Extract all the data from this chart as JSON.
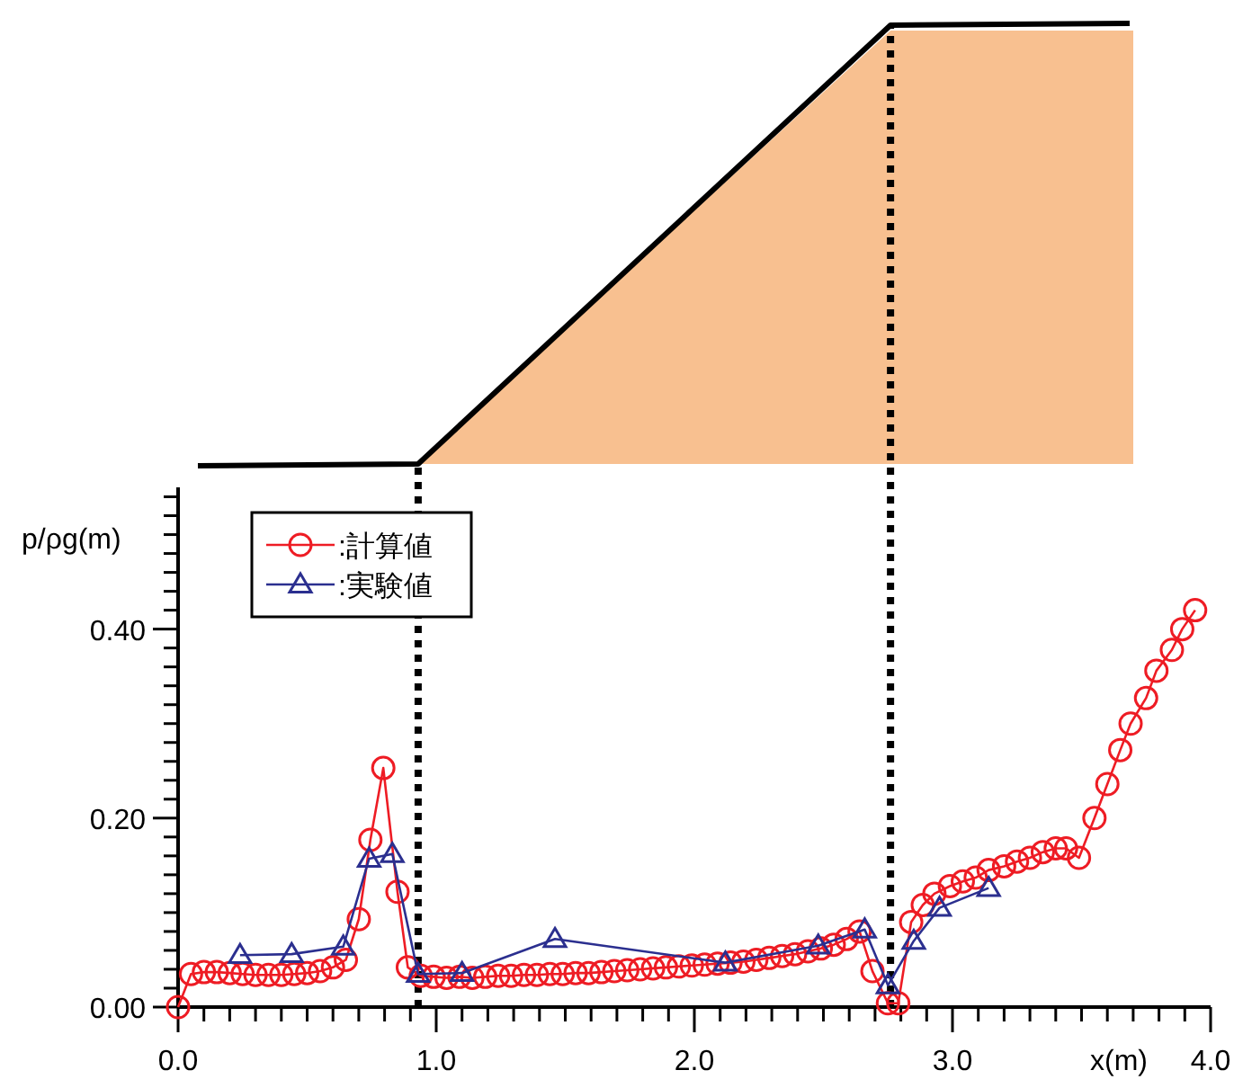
{
  "chart_data": {
    "type": "line",
    "xlabel": "x(m)",
    "ylabel": "p/ρg(m)",
    "xlim": [
      0,
      4.0
    ],
    "ylim": [
      0,
      0.55
    ],
    "xticks": [
      {
        "value": 0,
        "label": "0.0"
      },
      {
        "value": 0.1,
        "label": null
      },
      {
        "value": 0.2,
        "label": null
      },
      {
        "value": 0.3,
        "label": null
      },
      {
        "value": 0.4,
        "label": null
      },
      {
        "value": 0.5,
        "label": null
      },
      {
        "value": 0.6,
        "label": null
      },
      {
        "value": 0.7,
        "label": null
      },
      {
        "value": 0.8,
        "label": null
      },
      {
        "value": 0.9,
        "label": null
      },
      {
        "value": 1,
        "label": "1.0"
      },
      {
        "value": 1.1,
        "label": null
      },
      {
        "value": 1.2,
        "label": null
      },
      {
        "value": 1.3,
        "label": null
      },
      {
        "value": 1.4,
        "label": null
      },
      {
        "value": 1.5,
        "label": null
      },
      {
        "value": 1.6,
        "label": null
      },
      {
        "value": 1.7,
        "label": null
      },
      {
        "value": 1.8,
        "label": null
      },
      {
        "value": 1.9,
        "label": null
      },
      {
        "value": 2,
        "label": "2.0"
      },
      {
        "value": 2.1,
        "label": null
      },
      {
        "value": 2.2,
        "label": null
      },
      {
        "value": 2.3,
        "label": null
      },
      {
        "value": 2.4,
        "label": null
      },
      {
        "value": 2.5,
        "label": null
      },
      {
        "value": 2.6,
        "label": null
      },
      {
        "value": 2.7,
        "label": null
      },
      {
        "value": 2.8,
        "label": null
      },
      {
        "value": 2.9,
        "label": null
      },
      {
        "value": 3,
        "label": "3.0"
      },
      {
        "value": 3.1,
        "label": null
      },
      {
        "value": 3.2,
        "label": null
      },
      {
        "value": 3.3,
        "label": null
      },
      {
        "value": 3.4,
        "label": null
      },
      {
        "value": 3.5,
        "label": null
      },
      {
        "value": 3.6,
        "label": null
      },
      {
        "value": 3.7,
        "label": null
      },
      {
        "value": 3.8,
        "label": null
      },
      {
        "value": 3.9,
        "label": null
      },
      {
        "value": 4,
        "label": "4.0"
      }
    ],
    "yticks": [
      {
        "value": 0,
        "label": "0.00"
      },
      {
        "value": 0.02,
        "label": null
      },
      {
        "value": 0.04,
        "label": null
      },
      {
        "value": 0.06,
        "label": null
      },
      {
        "value": 0.08,
        "label": null
      },
      {
        "value": 0.1,
        "label": null
      },
      {
        "value": 0.12,
        "label": null
      },
      {
        "value": 0.14,
        "label": null
      },
      {
        "value": 0.16,
        "label": null
      },
      {
        "value": 0.18,
        "label": null
      },
      {
        "value": 0.2,
        "label": "0.20"
      },
      {
        "value": 0.22,
        "label": null
      },
      {
        "value": 0.24,
        "label": null
      },
      {
        "value": 0.26,
        "label": null
      },
      {
        "value": 0.28,
        "label": null
      },
      {
        "value": 0.3,
        "label": null
      },
      {
        "value": 0.32,
        "label": null
      },
      {
        "value": 0.34,
        "label": null
      },
      {
        "value": 0.36,
        "label": null
      },
      {
        "value": 0.38,
        "label": null
      },
      {
        "value": 0.4,
        "label": "0.40"
      },
      {
        "value": 0.42,
        "label": null
      },
      {
        "value": 0.44,
        "label": null
      },
      {
        "value": 0.46,
        "label": null
      },
      {
        "value": 0.48,
        "label": null
      },
      {
        "value": 0.5,
        "label": null
      },
      {
        "value": 0.52,
        "label": null
      },
      {
        "value": 0.54,
        "label": null
      }
    ],
    "grid": false,
    "legend": "top left",
    "ref_lines": [
      {
        "axis": "x",
        "value": 0.93,
        "label": null,
        "color": "#000000",
        "line_style": "dotted"
      },
      {
        "axis": "x",
        "value": 2.76,
        "label": null,
        "color": "#000000",
        "line_style": "dotted"
      }
    ],
    "series": [
      {
        "name": ":計算値",
        "color": "#ee1c24",
        "marker": "circle",
        "x": [
          0,
          0.05,
          0.1,
          0.15,
          0.2,
          0.25,
          0.3,
          0.35,
          0.4,
          0.45,
          0.5,
          0.55,
          0.6,
          0.65,
          0.7,
          0.745,
          0.795,
          0.85,
          0.89,
          0.94,
          0.99,
          1.04,
          1.09,
          1.14,
          1.19,
          1.24,
          1.29,
          1.34,
          1.39,
          1.44,
          1.49,
          1.54,
          1.59,
          1.64,
          1.69,
          1.74,
          1.79,
          1.84,
          1.89,
          1.94,
          1.99,
          2.04,
          2.09,
          2.14,
          2.19,
          2.24,
          2.29,
          2.34,
          2.39,
          2.44,
          2.49,
          2.54,
          2.59,
          2.64,
          2.69,
          2.75,
          2.79,
          2.84,
          2.885,
          2.93,
          2.99,
          3.04,
          3.09,
          3.14,
          3.2,
          3.25,
          3.3,
          3.35,
          3.4,
          3.44,
          3.49,
          3.55,
          3.6,
          3.65,
          3.69,
          3.75,
          3.79,
          3.85,
          3.89,
          3.94
        ],
        "values": [
          0,
          0.035,
          0.037,
          0.037,
          0.036,
          0.035,
          0.034,
          0.034,
          0.034,
          0.035,
          0.036,
          0.038,
          0.042,
          0.05,
          0.093,
          0.177,
          0.253,
          0.122,
          0.042,
          0.033,
          0.032,
          0.031,
          0.032,
          0.031,
          0.032,
          0.033,
          0.033,
          0.034,
          0.034,
          0.035,
          0.035,
          0.036,
          0.036,
          0.037,
          0.038,
          0.039,
          0.04,
          0.041,
          0.042,
          0.043,
          0.044,
          0.045,
          0.046,
          0.047,
          0.048,
          0.05,
          0.052,
          0.054,
          0.056,
          0.059,
          0.062,
          0.066,
          0.072,
          0.08,
          0.038,
          0.004,
          0.004,
          0.09,
          0.108,
          0.12,
          0.128,
          0.133,
          0.137,
          0.145,
          0.149,
          0.154,
          0.158,
          0.164,
          0.168,
          0.168,
          0.158,
          0.2,
          0.236,
          0.272,
          0.3,
          0.327,
          0.356,
          0.378,
          0.4,
          0.42
        ]
      },
      {
        "name": ":実験値",
        "color": "#2b2f8f",
        "marker": "triangle",
        "x": [
          0.24,
          0.44,
          0.64,
          0.74,
          0.83,
          0.93,
          1.1,
          1.46,
          2.12,
          2.48,
          2.66,
          2.75,
          2.85,
          2.95,
          3.14
        ],
        "values": [
          0.055,
          0.056,
          0.064,
          0.157,
          0.162,
          0.035,
          0.036,
          0.072,
          0.047,
          0.065,
          0.082,
          0.023,
          0.07,
          0.105,
          0.126
        ]
      }
    ]
  }
}
